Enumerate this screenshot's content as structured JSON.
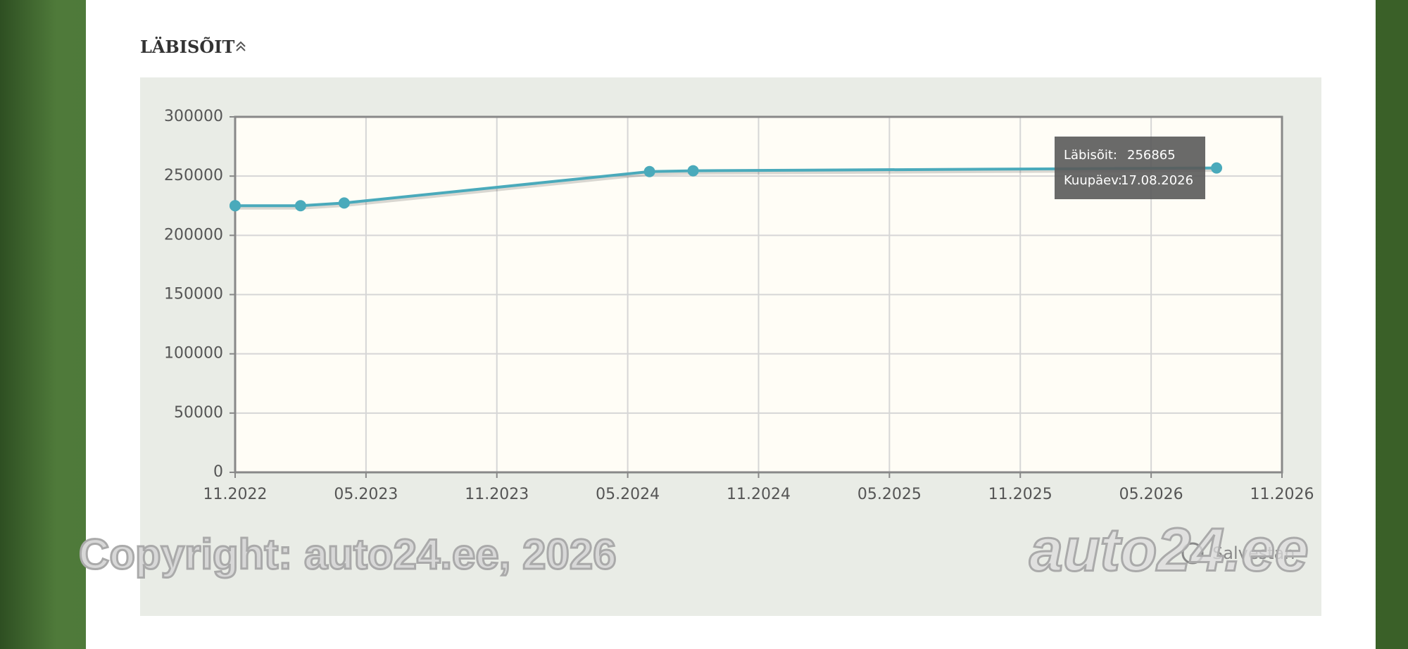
{
  "header": {
    "title": "LÄBISÕIT"
  },
  "chart_data": {
    "type": "line",
    "x": [
      "2022-11",
      "2022-11",
      "2023-02",
      "2023-04",
      "2024-06",
      "2024-08",
      "2026-08"
    ],
    "values": [
      225000,
      225000,
      225000,
      227300,
      253800,
      254500,
      256865
    ],
    "color": "#4aaabb",
    "xlim": [
      "2022-11",
      "2026-11"
    ],
    "xticks": [
      {
        "value": "2022-11",
        "label": "11.2022"
      },
      {
        "value": "2023-05",
        "label": "05.2023"
      },
      {
        "value": "2023-11",
        "label": "11.2023"
      },
      {
        "value": "2024-05",
        "label": "05.2024"
      },
      {
        "value": "2024-11",
        "label": "11.2024"
      },
      {
        "value": "2025-05",
        "label": "05.2025"
      },
      {
        "value": "2025-11",
        "label": "11.2025"
      },
      {
        "value": "2026-05",
        "label": "05.2026"
      },
      {
        "value": "2026-11",
        "label": "11.2026"
      }
    ],
    "ylim": [
      0,
      300000
    ],
    "yticks": [
      0,
      50000,
      100000,
      150000,
      200000,
      250000,
      300000
    ],
    "grid": true
  },
  "tooltip": {
    "label_1": "Läbisõit:",
    "value_1": "256865",
    "label_2": "Kuupäev:",
    "value_2": "17.08.2026"
  },
  "watermark": {
    "copyright": "Copyright: auto24.ee, 2026",
    "logo": "auto24.ee"
  },
  "button": {
    "label": "Salvestan"
  }
}
